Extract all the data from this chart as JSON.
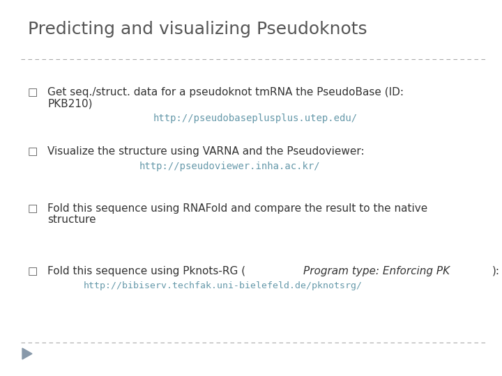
{
  "title": "Predicting and visualizing Pseudoknots",
  "title_fontsize": 18,
  "title_color": "#555555",
  "background_color": "#ffffff",
  "separator_color": "#aaaaaa",
  "bullet_color": "#555555",
  "bullet_char": "□",
  "body_color": "#333333",
  "body_fontsize": 11,
  "url_color": "#6699aa",
  "url_fontsize": 10,
  "triangle_color": "#8899aa",
  "bullet1_text1": "Get seq./struct. data for a pseudoknot tmRNA the PseudoBase (ID:",
  "bullet1_text2": "PKB210)",
  "bullet1_url": "http://pseudobaseplusplus.utep.edu/",
  "bullet2_text": "Visualize the structure using VARNA and the Pseudoviewer:",
  "bullet2_url": "http://pseudoviewer.inha.ac.kr/",
  "bullet3_text1": "Fold this sequence using RNAFold and compare the result to the native",
  "bullet3_text2": "structure",
  "bullet4_pre": "Fold this sequence using Pknots-RG (",
  "bullet4_italic": "Program type: Enforcing PK",
  "bullet4_post": "):",
  "bullet4_url": "http://bibiserv.techfak.uni-bielefeld.de/pknotsrg/"
}
